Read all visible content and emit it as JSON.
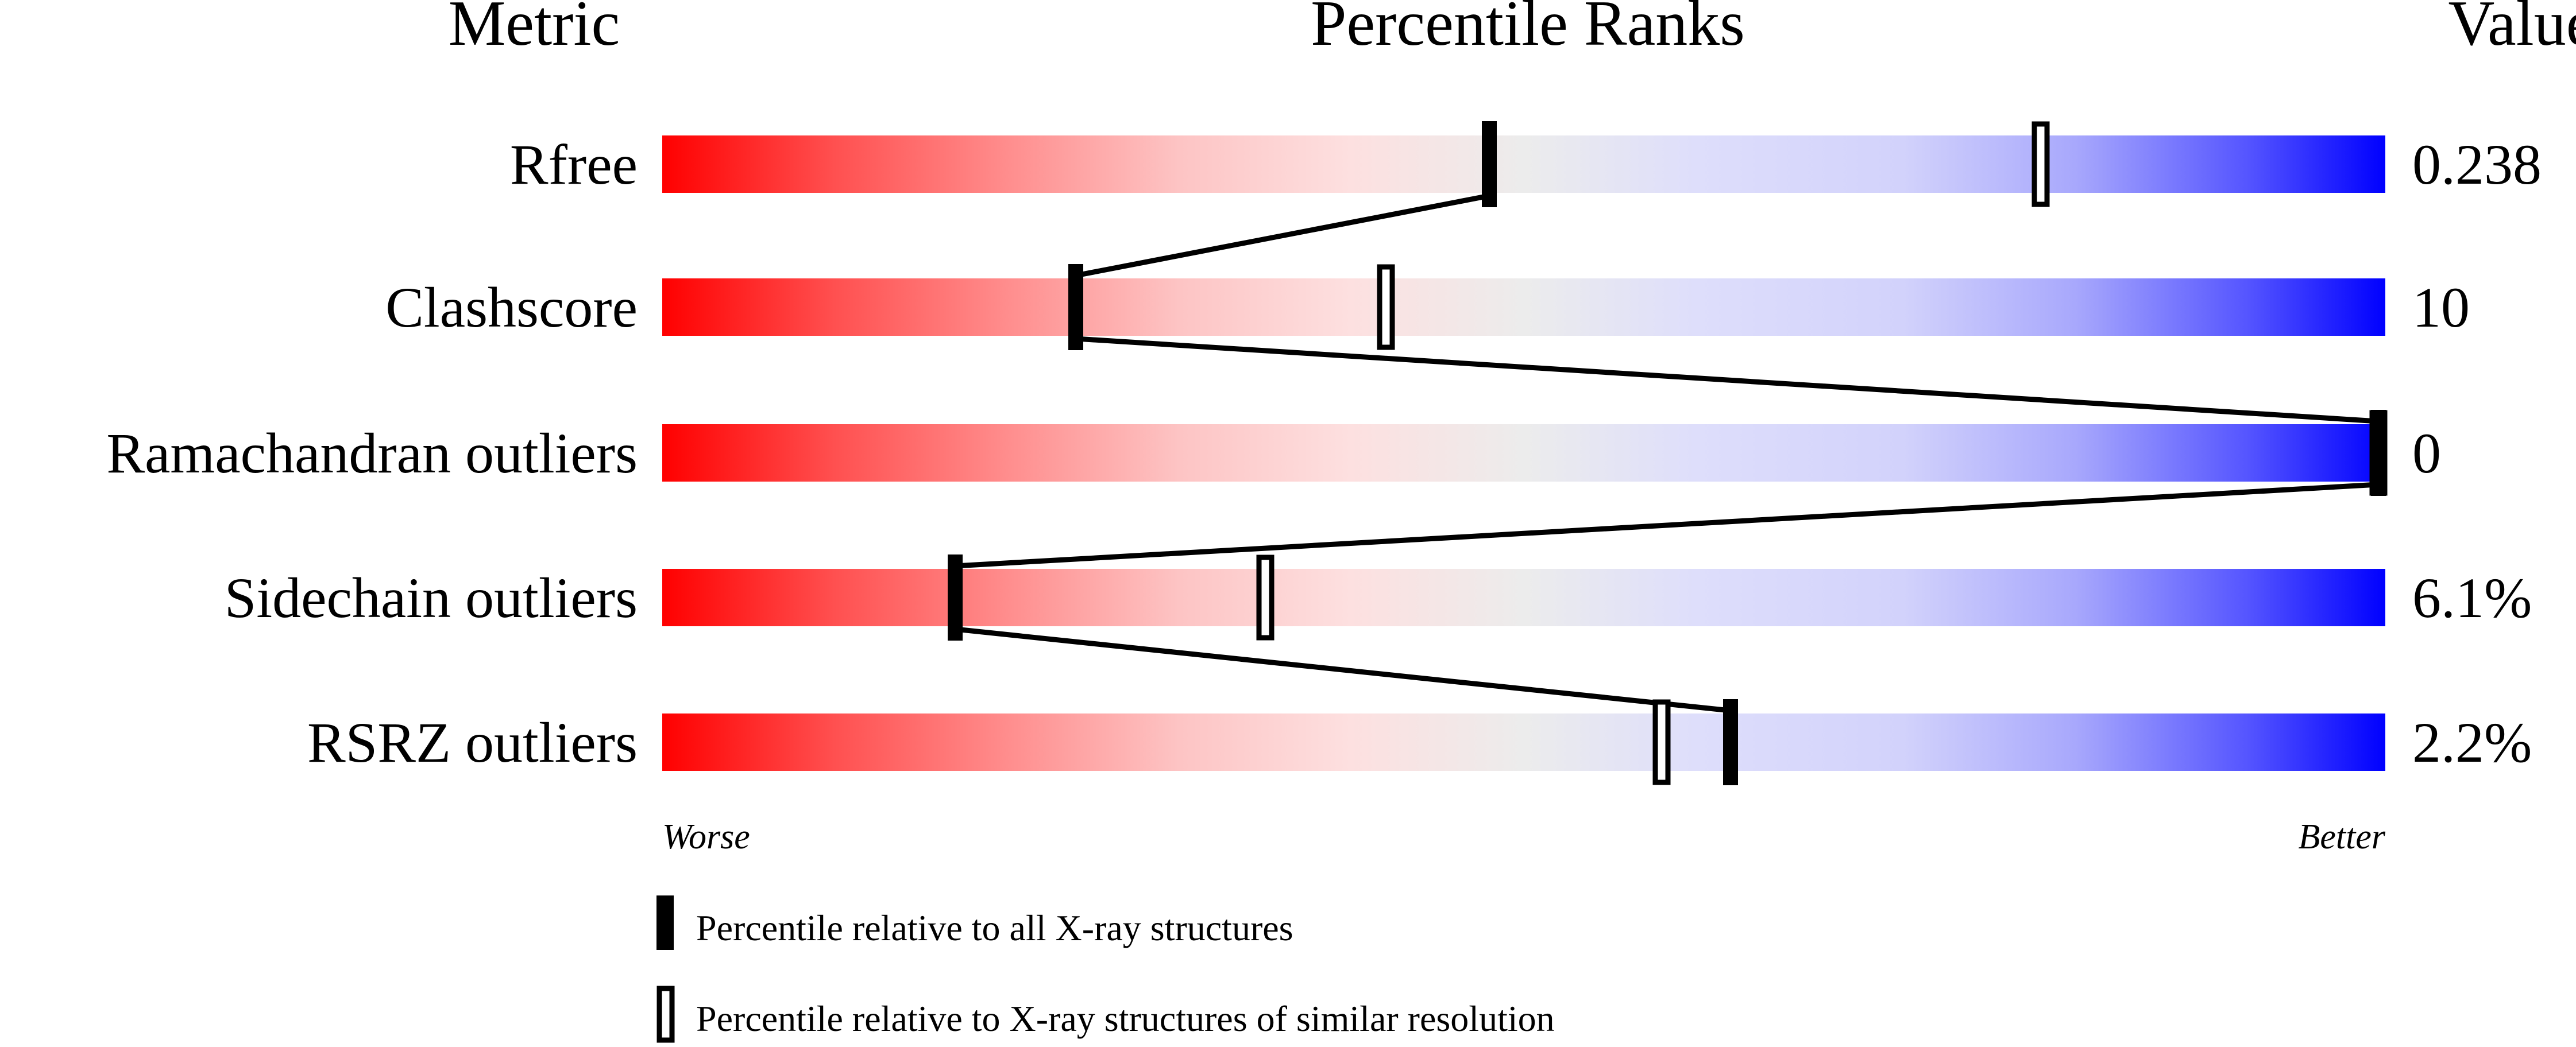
{
  "chart_data": {
    "type": "percentile-bars",
    "headers": {
      "metric": "Metric",
      "ranks": "Percentile Ranks",
      "value": "Value"
    },
    "xlim": [
      0,
      100
    ],
    "rows": [
      {
        "metric": "Rfree",
        "value": "0.238",
        "percentile_all": 48,
        "percentile_similar": 80
      },
      {
        "metric": "Clashscore",
        "value": "10",
        "percentile_all": 24,
        "percentile_similar": 42
      },
      {
        "metric": "Ramachandran outliers",
        "value": "0",
        "percentile_all": 100,
        "percentile_similar": 100
      },
      {
        "metric": "Sidechain outliers",
        "value": "6.1%",
        "percentile_all": 17,
        "percentile_similar": 35
      },
      {
        "metric": "RSRZ outliers",
        "value": "2.2%",
        "percentile_all": 62,
        "percentile_similar": 58
      }
    ],
    "axis_left": "Worse",
    "axis_right": "Better",
    "legend": [
      {
        "marker": "filled",
        "label": "Percentile relative to all X-ray structures"
      },
      {
        "marker": "open",
        "label": "Percentile relative to X-ray structures of similar resolution"
      }
    ],
    "gradient_colors": [
      "#ff0000",
      "#fdd9d9",
      "#ececec",
      "#dcdcfb",
      "#0000ff"
    ]
  }
}
